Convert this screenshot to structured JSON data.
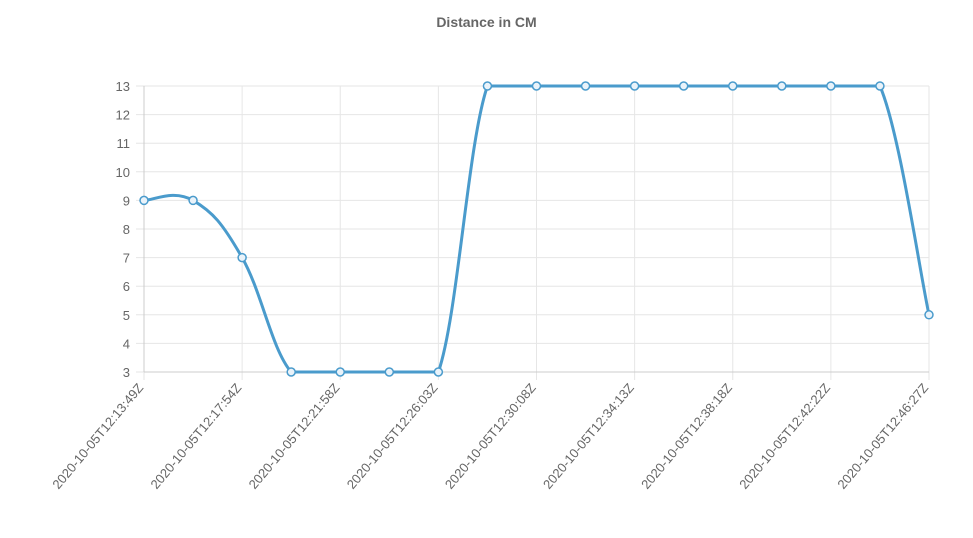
{
  "chart_data": {
    "type": "line",
    "title": "Distance in CM",
    "xlabel": "",
    "ylabel": "",
    "ylim": [
      3,
      13
    ],
    "yticks": [
      3,
      4,
      5,
      6,
      7,
      8,
      9,
      10,
      11,
      12,
      13
    ],
    "grid": true,
    "legend": "none",
    "x": [
      "2020-10-05T12:13:49Z",
      "",
      "2020-10-05T12:17:54Z",
      "",
      "2020-10-05T12:21:58Z",
      "",
      "2020-10-05T12:26:03Z",
      "",
      "2020-10-05T12:30:08Z",
      "",
      "2020-10-05T12:34:13Z",
      "",
      "2020-10-05T12:38:18Z",
      "",
      "2020-10-05T12:42:22Z",
      "",
      "2020-10-05T12:46:27Z"
    ],
    "series": [
      {
        "values": [
          9,
          9,
          7,
          3,
          3,
          3,
          3,
          13,
          13,
          13,
          13,
          13,
          13,
          13,
          13,
          13,
          5
        ]
      }
    ],
    "colors": {
      "line": "#4a9bcc",
      "grid": "#e6e6e6",
      "axis": "#cccccc",
      "text": "#666666"
    }
  }
}
